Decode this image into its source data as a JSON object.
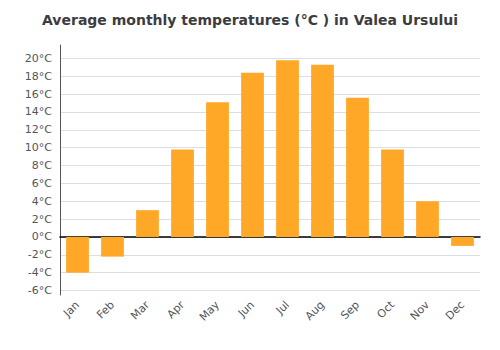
{
  "chart_data": {
    "type": "bar",
    "title": "Average monthly temperatures (°C ) in Valea Ursului",
    "categories": [
      "Jan",
      "Feb",
      "Mar",
      "Apr",
      "May",
      "Jun",
      "Jul",
      "Aug",
      "Sep",
      "Oct",
      "Nov",
      "Dec"
    ],
    "values": [
      -4.0,
      -2.2,
      3.0,
      9.8,
      15.1,
      18.4,
      19.8,
      19.3,
      15.6,
      9.8,
      4.0,
      -1.0
    ],
    "color": "#FFA726",
    "ylim": [
      -6.5,
      21.5
    ],
    "yticks": [
      {
        "value": -6,
        "label": "-6°C"
      },
      {
        "value": -4,
        "label": "-4°C"
      },
      {
        "value": -2,
        "label": "-2°C"
      },
      {
        "value": 0,
        "label": "0°C"
      },
      {
        "value": 2,
        "label": "2°C"
      },
      {
        "value": 4,
        "label": "4°C"
      },
      {
        "value": 6,
        "label": "6°C"
      },
      {
        "value": 8,
        "label": "8°C"
      },
      {
        "value": 10,
        "label": "10°C"
      },
      {
        "value": 12,
        "label": "12°C"
      },
      {
        "value": 14,
        "label": "14°C"
      },
      {
        "value": 16,
        "label": "16°C"
      },
      {
        "value": 18,
        "label": "18°C"
      },
      {
        "value": 20,
        "label": "20°C"
      }
    ],
    "grid": true
  }
}
